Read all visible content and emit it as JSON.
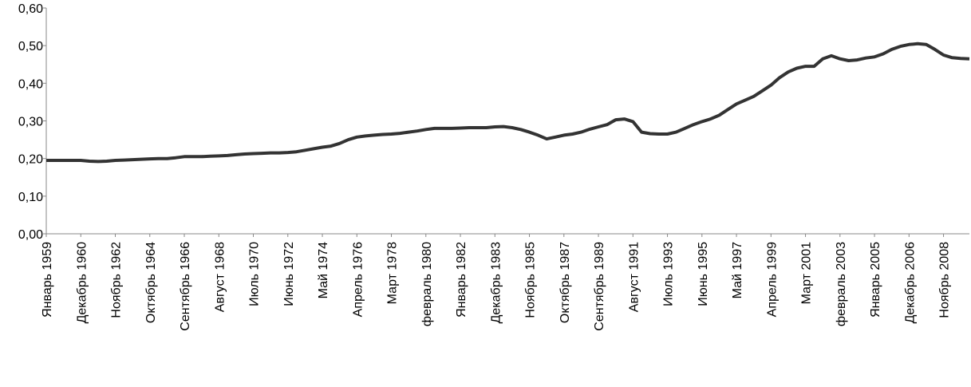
{
  "chart_data": {
    "type": "line",
    "categories": [
      "Январь 1959",
      null,
      null,
      null,
      "Декабрь 1960",
      null,
      null,
      null,
      "Ноябрь 1962",
      null,
      null,
      null,
      "Октябрь 1964",
      null,
      null,
      null,
      "Сентябрь 1966",
      null,
      null,
      null,
      "Август 1968",
      null,
      null,
      null,
      "Июль 1970",
      null,
      null,
      null,
      "Июнь 1972",
      null,
      null,
      null,
      "Май 1974",
      null,
      null,
      null,
      "Апрель 1976",
      null,
      null,
      null,
      "Март 1978",
      null,
      null,
      null,
      "февраль 1980",
      null,
      null,
      null,
      "Январь 1982",
      null,
      null,
      null,
      "Декабрь 1983",
      null,
      null,
      null,
      "Ноябрь 1985",
      null,
      null,
      null,
      "Октябрь 1987",
      null,
      null,
      null,
      "Сентябрь 1989",
      null,
      null,
      null,
      "Август 1991",
      null,
      null,
      null,
      "Июль 1993",
      null,
      null,
      null,
      "Июнь 1995",
      null,
      null,
      null,
      "Май 1997",
      null,
      null,
      null,
      "Апрель 1999",
      null,
      null,
      null,
      "Март 2001",
      null,
      null,
      null,
      "февраль 2003",
      null,
      null,
      null,
      "Январь 2005",
      null,
      null,
      null,
      "Декабрь 2006",
      null,
      null,
      null,
      "Ноябрь 2008",
      null,
      null,
      null
    ],
    "values": [
      0.195,
      0.195,
      0.195,
      0.195,
      0.195,
      0.193,
      0.192,
      0.193,
      0.195,
      0.196,
      0.197,
      0.198,
      0.199,
      0.2,
      0.2,
      0.202,
      0.205,
      0.205,
      0.205,
      0.206,
      0.207,
      0.208,
      0.21,
      0.212,
      0.213,
      0.214,
      0.215,
      0.215,
      0.216,
      0.218,
      0.222,
      0.226,
      0.23,
      0.233,
      0.24,
      0.25,
      0.257,
      0.26,
      0.262,
      0.264,
      0.265,
      0.267,
      0.27,
      0.273,
      0.277,
      0.28,
      0.28,
      0.28,
      0.281,
      0.282,
      0.282,
      0.282,
      0.284,
      0.285,
      0.282,
      0.277,
      0.27,
      0.262,
      0.252,
      0.257,
      0.262,
      0.265,
      0.27,
      0.278,
      0.284,
      0.29,
      0.303,
      0.305,
      0.298,
      0.27,
      0.266,
      0.265,
      0.265,
      0.27,
      0.28,
      0.29,
      0.298,
      0.305,
      0.315,
      0.33,
      0.345,
      0.355,
      0.365,
      0.38,
      0.395,
      0.415,
      0.43,
      0.44,
      0.445,
      0.445,
      0.465,
      0.473,
      0.465,
      0.46,
      0.462,
      0.467,
      0.47,
      0.478,
      0.49,
      0.498,
      0.503,
      0.505,
      0.503,
      0.49,
      0.475,
      0.468,
      0.466,
      0.465
    ],
    "color": "#333333",
    "ylim": [
      0,
      0.6
    ],
    "yticks": [
      {
        "value": 0,
        "label": "0,00"
      },
      {
        "value": 0.1,
        "label": "0,10"
      },
      {
        "value": 0.2,
        "label": "0,20"
      },
      {
        "value": 0.3,
        "label": "0,30"
      },
      {
        "value": 0.4,
        "label": "0,40"
      },
      {
        "value": 0.5,
        "label": "0,50"
      },
      {
        "value": 0.6,
        "label": "0,60"
      }
    ],
    "grid": false
  }
}
